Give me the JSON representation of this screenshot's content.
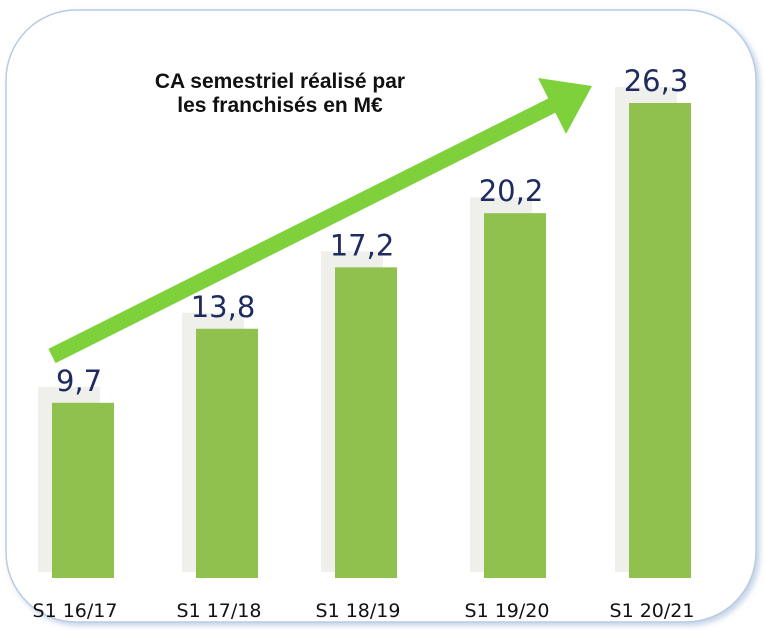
{
  "chart_data": {
    "type": "bar",
    "title": [
      "CA semestriel réalisé par",
      "les franchisés en M€"
    ],
    "categories": [
      "S1 16/17",
      "S1 17/18",
      "S1 18/19",
      "S1 19/20",
      "S1 20/21"
    ],
    "values": [
      9.7,
      13.8,
      17.2,
      20.2,
      26.3
    ],
    "value_labels": [
      "9,7",
      "13,8",
      "17,2",
      "20,2",
      "26,3"
    ],
    "color": "#90c04d"
  }
}
